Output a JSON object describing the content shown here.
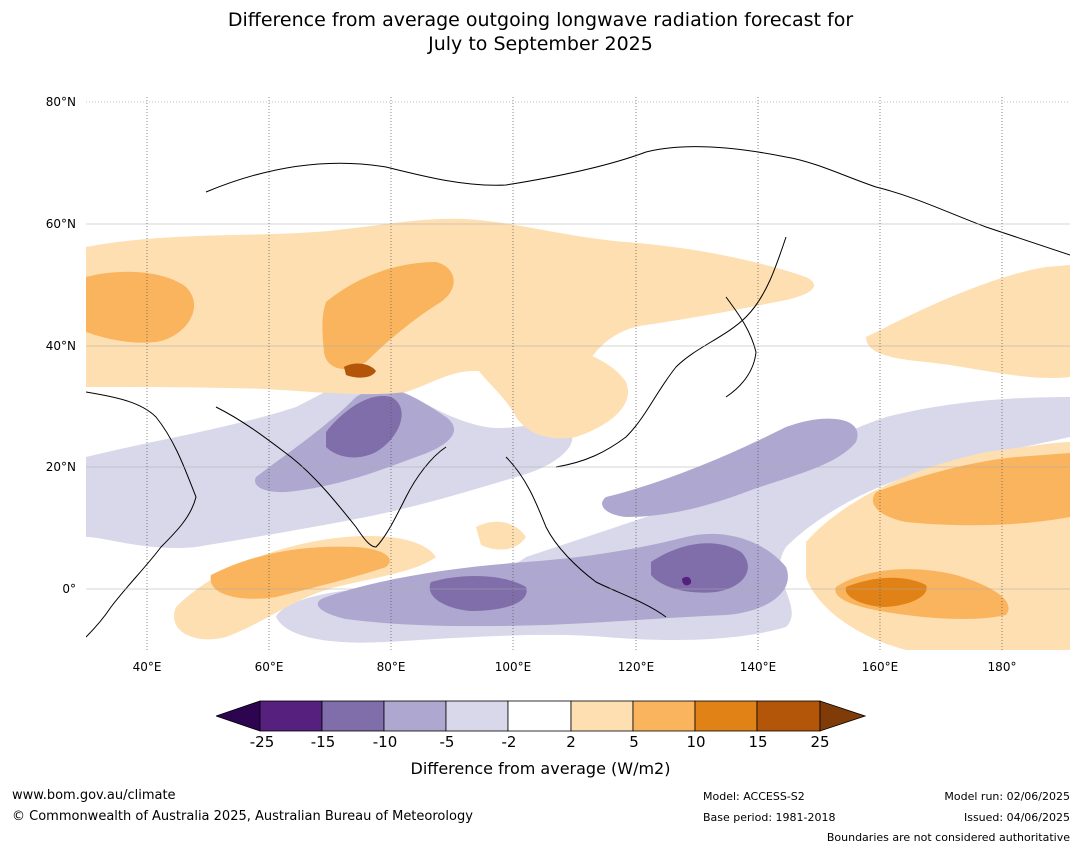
{
  "title": {
    "line1": "Difference from average outgoing longwave radiation forecast for",
    "line2": "July to September 2025"
  },
  "map": {
    "lat_labels": [
      "80°N",
      "60°N",
      "40°N",
      "20°N",
      "0°"
    ],
    "lat_values": [
      80,
      60,
      40,
      20,
      0
    ],
    "lon_labels": [
      "40°E",
      "60°E",
      "80°E",
      "100°E",
      "120°E",
      "140°E",
      "160°E",
      "180°"
    ],
    "lon_values": [
      40,
      60,
      80,
      100,
      120,
      140,
      160,
      180
    ],
    "extent": {
      "lon_min": 30,
      "lon_max": 191,
      "lat_min": -10,
      "lat_max": 81
    }
  },
  "colorbar": {
    "ticks": [
      "-25",
      "-15",
      "-10",
      "-5",
      "-2",
      "2",
      "5",
      "10",
      "15",
      "25"
    ],
    "colors": [
      "#56207f",
      "#7f6ea9",
      "#aea7cf",
      "#d8d8ea",
      "#ffffff",
      "#fddfb2",
      "#fbb45e",
      "#e08215",
      "#b35609"
    ],
    "under_color": "#2d0450",
    "over_color": "#7f3b08",
    "label": "Difference from average (W/m2)"
  },
  "footer": {
    "url": "www.bom.gov.au/climate",
    "copyright": "© Commonwealth of Australia 2025, Australian Bureau of Meteorology",
    "model": "Model: ACCESS-S2",
    "base_period": "Base period: 1981-2018",
    "model_run": "Model run: 02/06/2025",
    "issued": "Issued: 04/06/2025",
    "disclaimer": "Boundaries are not considered authoritative"
  }
}
